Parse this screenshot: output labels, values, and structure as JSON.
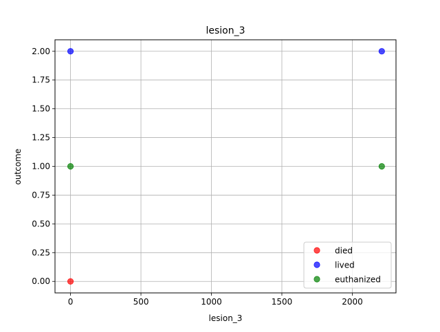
{
  "chart_data": {
    "type": "scatter",
    "title": "lesion_3",
    "xlabel": "lesion_3",
    "ylabel": "outcome",
    "xlim": [
      -110,
      2310
    ],
    "ylim": [
      -0.1,
      2.1
    ],
    "xticks": [
      0,
      500,
      1000,
      1500,
      2000
    ],
    "xtick_labels": [
      "0",
      "500",
      "1000",
      "1500",
      "2000"
    ],
    "yticks": [
      0,
      0.25,
      0.5,
      0.75,
      1,
      1.25,
      1.5,
      1.75,
      2
    ],
    "ytick_labels": [
      "0.00",
      "0.25",
      "0.50",
      "0.75",
      "1.00",
      "1.25",
      "1.50",
      "1.75",
      "2.00"
    ],
    "grid": true,
    "legend_position": "bottom-right",
    "series": [
      {
        "name": "died",
        "color": "#ff0000",
        "points": [
          {
            "x": 0,
            "y": 0
          }
        ]
      },
      {
        "name": "lived",
        "color": "#0000ff",
        "points": [
          {
            "x": 0,
            "y": 2
          },
          {
            "x": 2209,
            "y": 2
          }
        ]
      },
      {
        "name": "euthanized",
        "color": "#008000",
        "points": [
          {
            "x": 0,
            "y": 1
          },
          {
            "x": 2209,
            "y": 1
          }
        ]
      }
    ]
  }
}
